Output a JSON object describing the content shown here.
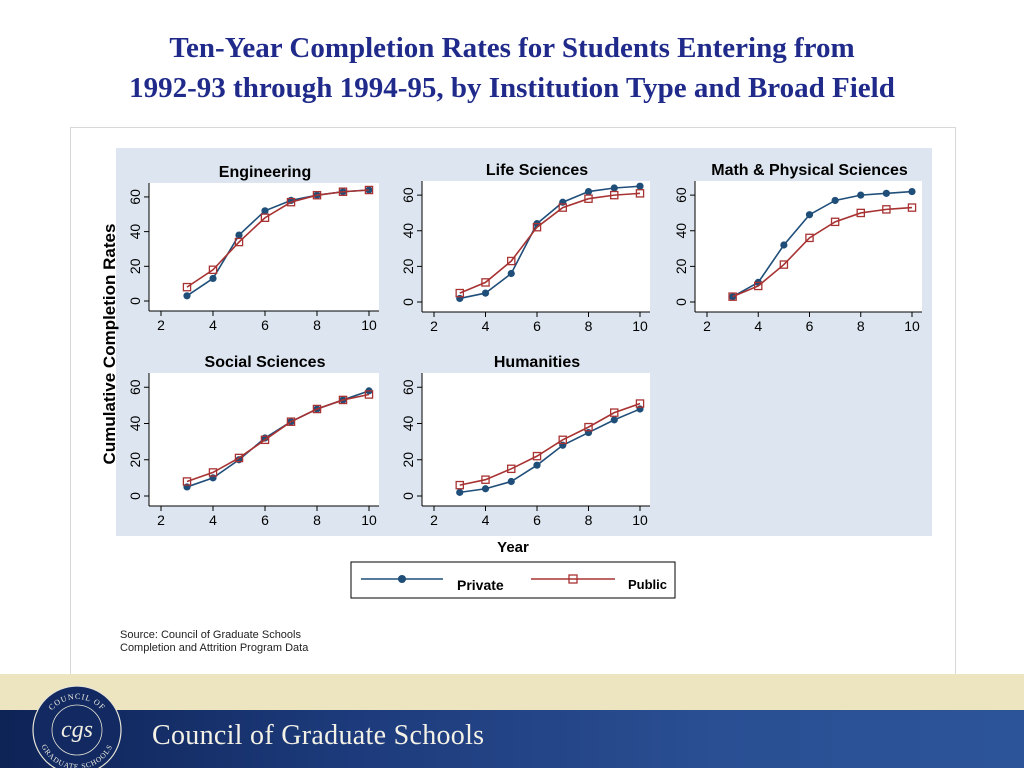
{
  "title": {
    "line1": "Ten-Year Completion Rates for Students Entering from",
    "line2": "1992-93 through 1994-95, by Institution Type and Broad Field"
  },
  "chart_data": {
    "type": "line",
    "ylabel": "Cumulative Completion Rates",
    "xlabel": "Year",
    "x": [
      3,
      4,
      5,
      6,
      7,
      8,
      9,
      10
    ],
    "xticks": [
      2,
      4,
      6,
      8,
      10
    ],
    "yticks": [
      0,
      20,
      40,
      60
    ],
    "legend": {
      "position": "bottom-center",
      "entries": [
        "Private",
        "Public"
      ]
    },
    "colors": {
      "Private": "#1f4e79",
      "Public": "#a83232",
      "panel_bg": "#dde6f0",
      "title_bg": "#dde6f0"
    },
    "panels": [
      {
        "title": "Engineering",
        "series": [
          {
            "name": "Private",
            "marker": "circle",
            "values": [
              3,
              13,
              38,
              52,
              58,
              61,
              63,
              64
            ]
          },
          {
            "name": "Public",
            "marker": "hollow-square",
            "values": [
              8,
              18,
              34,
              48,
              57,
              61,
              63,
              64
            ]
          }
        ]
      },
      {
        "title": "Life Sciences",
        "series": [
          {
            "name": "Private",
            "marker": "circle",
            "values": [
              2,
              5,
              16,
              44,
              56,
              62,
              64,
              65
            ]
          },
          {
            "name": "Public",
            "marker": "hollow-square",
            "values": [
              5,
              11,
              23,
              42,
              53,
              58,
              60,
              61
            ]
          }
        ]
      },
      {
        "title": "Math & Physical Sciences",
        "series": [
          {
            "name": "Private",
            "marker": "circle",
            "values": [
              3,
              11,
              32,
              49,
              57,
              60,
              61,
              62
            ]
          },
          {
            "name": "Public",
            "marker": "hollow-square",
            "values": [
              3,
              9,
              21,
              36,
              45,
              50,
              52,
              53
            ]
          }
        ]
      },
      {
        "title": "Social Sciences",
        "series": [
          {
            "name": "Private",
            "marker": "circle",
            "values": [
              5,
              10,
              20,
              32,
              41,
              48,
              53,
              58
            ]
          },
          {
            "name": "Public",
            "marker": "hollow-square",
            "values": [
              8,
              13,
              21,
              31,
              41,
              48,
              53,
              56
            ]
          }
        ]
      },
      {
        "title": "Humanities",
        "series": [
          {
            "name": "Private",
            "marker": "circle",
            "values": [
              2,
              4,
              8,
              17,
              28,
              35,
              42,
              48
            ]
          },
          {
            "name": "Public",
            "marker": "hollow-square",
            "values": [
              6,
              9,
              15,
              22,
              31,
              38,
              46,
              51
            ]
          }
        ]
      }
    ]
  },
  "source": {
    "line1": "Source: Council of Graduate Schools",
    "line2": "Completion and Attrition Program Data"
  },
  "footer": {
    "org_name": "Council of Graduate Schools",
    "seal_top_text": "COUNCIL OF",
    "seal_monogram": "cgs",
    "seal_bottom_text": "GRADUATE SCHOOLS"
  }
}
